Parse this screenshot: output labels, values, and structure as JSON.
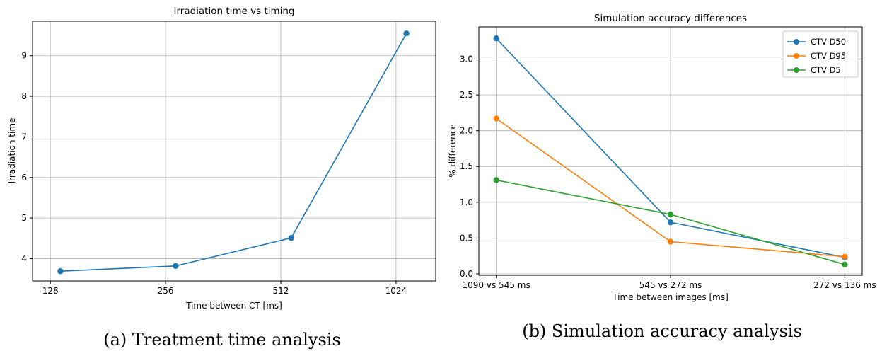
{
  "chart_data": [
    {
      "type": "line",
      "title": "Irradiation time vs timing",
      "xlabel": "Time between CT [ms]",
      "ylabel": "Irradiation time",
      "x_scale": "log2",
      "x_ticks": [
        128,
        256,
        512,
        1024
      ],
      "x_tick_labels": [
        "128",
        "256",
        "512",
        "1024"
      ],
      "y_ticks": [
        4,
        5,
        6,
        7,
        8,
        9
      ],
      "y_tick_labels": [
        "4",
        "5",
        "6",
        "7",
        "8",
        "9"
      ],
      "xlim": [
        115,
        1300
      ],
      "ylim": [
        3.45,
        9.85
      ],
      "grid": true,
      "series": [
        {
          "color": "#1f77b4",
          "x": [
            136,
            272,
            545,
            1090
          ],
          "y": [
            3.69,
            3.82,
            4.51,
            9.55
          ]
        }
      ],
      "caption": "(a) Treatment time analysis"
    },
    {
      "type": "line",
      "title": "Simulation accuracy differences",
      "xlabel": "Time between images [ms]",
      "ylabel": "% difference",
      "categories": [
        "1090 vs 545 ms",
        "545 vs 272 ms",
        "272 vs 136 ms"
      ],
      "y_ticks": [
        0.0,
        0.5,
        1.0,
        1.5,
        2.0,
        2.5,
        3.0
      ],
      "y_tick_labels": [
        "0.0",
        "0.5",
        "1.0",
        "1.5",
        "2.0",
        "2.5",
        "3.0"
      ],
      "ylim": [
        -0.02,
        3.45
      ],
      "grid": true,
      "legend": "top-right",
      "series": [
        {
          "name": "CTV D50",
          "color": "#1f77b4",
          "values": [
            3.29,
            0.72,
            0.23
          ]
        },
        {
          "name": "CTV D95",
          "color": "#ff7f0e",
          "values": [
            2.17,
            0.45,
            0.24
          ]
        },
        {
          "name": "CTV D5",
          "color": "#2ca02c",
          "values": [
            1.31,
            0.83,
            0.13
          ]
        }
      ],
      "caption": "(b) Simulation accuracy analysis"
    }
  ]
}
